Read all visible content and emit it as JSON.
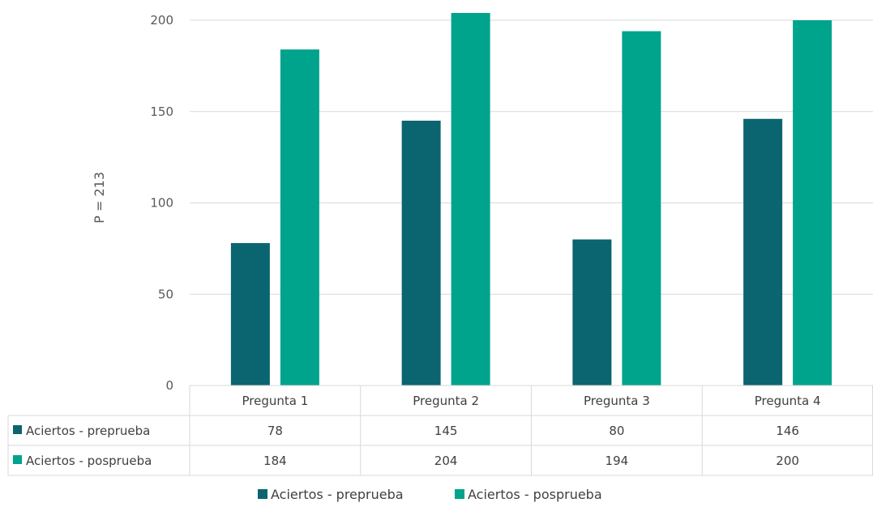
{
  "chart_data": {
    "type": "bar",
    "title": "",
    "xlabel": "",
    "ylabel": "P = 213",
    "ylim": [
      0,
      200
    ],
    "yticks": [
      0,
      50,
      100,
      150,
      200
    ],
    "grid": true,
    "legend_position": "bottom",
    "data_table": true,
    "categories": [
      "Pregunta 1",
      "Pregunta 2",
      "Pregunta 3",
      "Pregunta 4"
    ],
    "series": [
      {
        "name": "Aciertos - preprueba",
        "color": "#0a6570",
        "values": [
          78,
          145,
          80,
          146
        ]
      },
      {
        "name": "Aciertos - posprueba",
        "color": "#00a38c",
        "values": [
          184,
          204,
          194,
          200
        ]
      }
    ]
  }
}
